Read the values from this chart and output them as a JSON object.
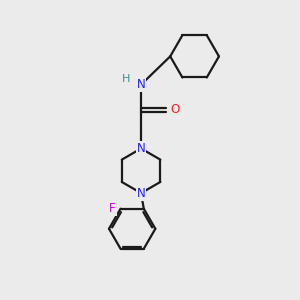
{
  "background_color": "#ebebeb",
  "bond_color": "#1a1a1a",
  "N_color": "#2020ff",
  "O_color": "#ff2020",
  "F_color": "#cc00cc",
  "H_color": "#3a9090",
  "figsize": [
    3.0,
    3.0
  ],
  "dpi": 100,
  "xlim": [
    0,
    10
  ],
  "ylim": [
    0,
    10
  ],
  "lw": 1.6,
  "fontsize": 8.5
}
